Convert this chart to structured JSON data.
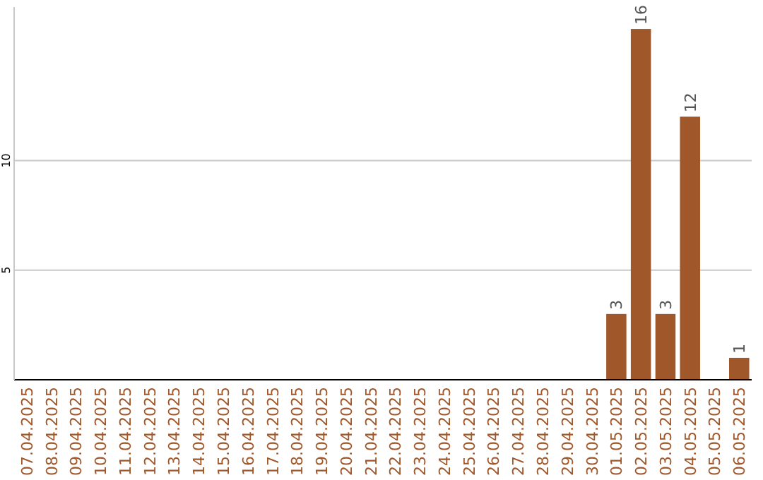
{
  "chart_data": {
    "type": "bar",
    "categories": [
      "07.04.2025",
      "08.04.2025",
      "09.04.2025",
      "10.04.2025",
      "11.04.2025",
      "12.04.2025",
      "13.04.2025",
      "14.04.2025",
      "15.04.2025",
      "16.04.2025",
      "17.04.2025",
      "18.04.2025",
      "19.04.2025",
      "20.04.2025",
      "21.04.2025",
      "22.04.2025",
      "23.04.2025",
      "24.04.2025",
      "25.04.2025",
      "26.04.2025",
      "27.04.2025",
      "28.04.2025",
      "29.04.2025",
      "30.04.2025",
      "01.05.2025",
      "02.05.2025",
      "03.05.2025",
      "04.05.2025",
      "05.05.2025",
      "06.05.2025"
    ],
    "values": [
      0,
      0,
      0,
      0,
      0,
      0,
      0,
      0,
      0,
      0,
      0,
      0,
      0,
      0,
      0,
      0,
      0,
      0,
      0,
      0,
      0,
      0,
      0,
      0,
      3,
      16,
      3,
      12,
      0,
      1
    ],
    "value_labels": [
      null,
      null,
      null,
      null,
      null,
      null,
      null,
      null,
      null,
      null,
      null,
      null,
      null,
      null,
      null,
      null,
      null,
      null,
      null,
      null,
      null,
      null,
      null,
      null,
      "3",
      "16",
      "3",
      "12",
      null,
      "1"
    ],
    "color": "#a0572a",
    "ylim": [
      0,
      17
    ],
    "yticks": [
      5,
      10
    ],
    "grid": "y"
  }
}
